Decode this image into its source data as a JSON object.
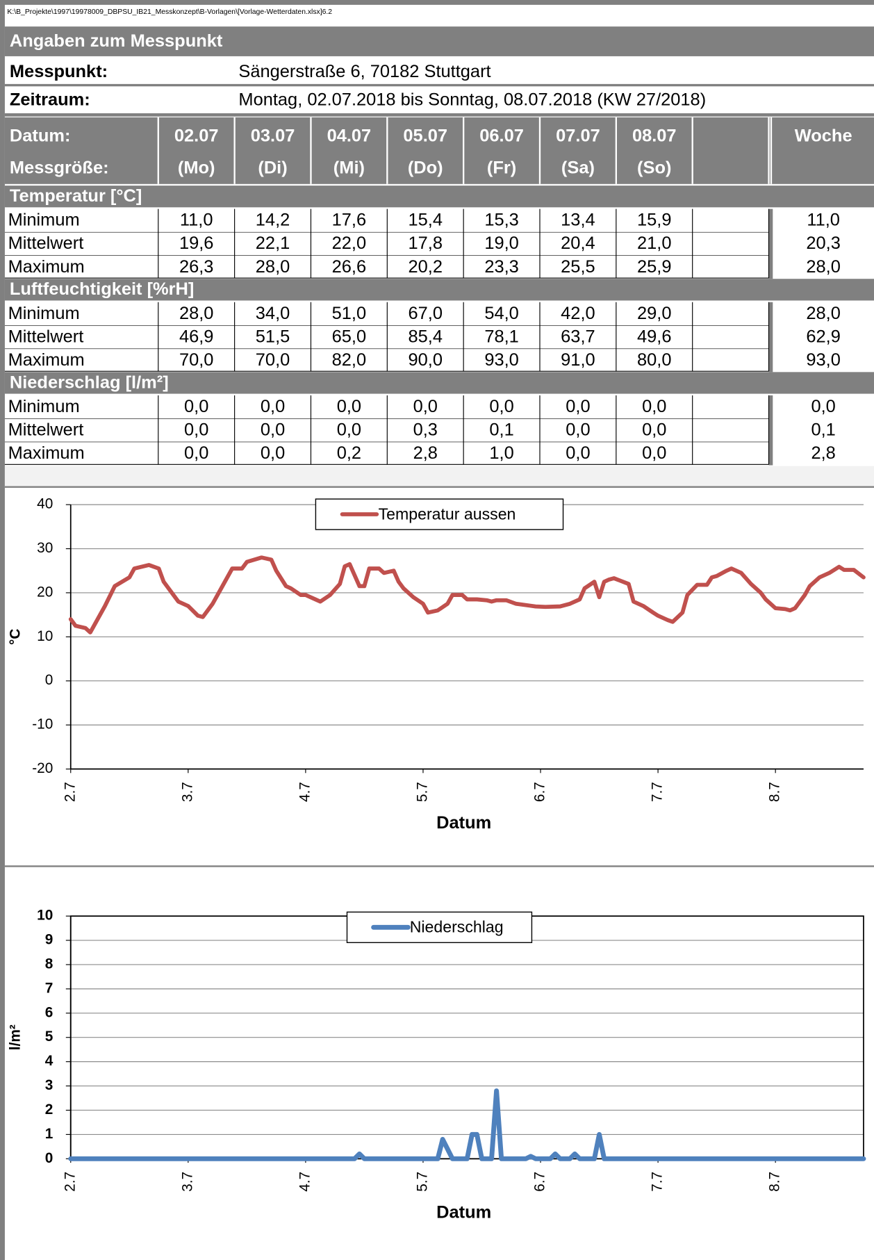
{
  "header": {
    "file_path": "K:\\B_Projekte\\1997\\19978009_DBPSU_IB21_Messkonzept\\B-Vorlagen\\[Vorlage-Wetterdaten.xlsx]6.2",
    "section_title": "Angaben zum Messpunkt",
    "messpunkt_label": "Messpunkt:",
    "messpunkt_value": "Sängerstraße 6, 70182 Stuttgart",
    "zeitraum_label": "Zeitraum:",
    "zeitraum_value": "Montag, 02.07.2018 bis Sonntag, 08.07.2018 (KW 27/2018)"
  },
  "table": {
    "label_top": "Datum:",
    "label_bottom": "Messgröße:",
    "days": [
      {
        "date": "02.07",
        "day": "(Mo)"
      },
      {
        "date": "03.07",
        "day": "(Di)"
      },
      {
        "date": "04.07",
        "day": "(Mi)"
      },
      {
        "date": "05.07",
        "day": "(Do)"
      },
      {
        "date": "06.07",
        "day": "(Fr)"
      },
      {
        "date": "07.07",
        "day": "(Sa)"
      },
      {
        "date": "08.07",
        "day": "(So)"
      }
    ],
    "week": "Woche",
    "groups": [
      {
        "title": "Temperatur [°C]",
        "rows": [
          {
            "label": "Minimum",
            "values": [
              "11,0",
              "14,2",
              "17,6",
              "15,4",
              "15,3",
              "13,4",
              "15,9"
            ],
            "week": "11,0"
          },
          {
            "label": "Mittelwert",
            "values": [
              "19,6",
              "22,1",
              "22,0",
              "17,8",
              "19,0",
              "20,4",
              "21,0"
            ],
            "week": "20,3"
          },
          {
            "label": "Maximum",
            "values": [
              "26,3",
              "28,0",
              "26,6",
              "20,2",
              "23,3",
              "25,5",
              "25,9"
            ],
            "week": "28,0"
          }
        ]
      },
      {
        "title": "Luftfeuchtigkeit [%rH]",
        "rows": [
          {
            "label": "Minimum",
            "values": [
              "28,0",
              "34,0",
              "51,0",
              "67,0",
              "54,0",
              "42,0",
              "29,0"
            ],
            "week": "28,0"
          },
          {
            "label": "Mittelwert",
            "values": [
              "46,9",
              "51,5",
              "65,0",
              "85,4",
              "78,1",
              "63,7",
              "49,6"
            ],
            "week": "62,9"
          },
          {
            "label": "Maximum",
            "values": [
              "70,0",
              "70,0",
              "82,0",
              "90,0",
              "93,0",
              "91,0",
              "80,0"
            ],
            "week": "93,0"
          }
        ]
      },
      {
        "title": "Niederschlag [l/m²]",
        "rows": [
          {
            "label": "Minimum",
            "values": [
              "0,0",
              "0,0",
              "0,0",
              "0,0",
              "0,0",
              "0,0",
              "0,0"
            ],
            "week": "0,0"
          },
          {
            "label": "Mittelwert",
            "values": [
              "0,0",
              "0,0",
              "0,0",
              "0,3",
              "0,1",
              "0,0",
              "0,0"
            ],
            "week": "0,1"
          },
          {
            "label": "Maximum",
            "values": [
              "0,0",
              "0,0",
              "0,2",
              "2,8",
              "1,0",
              "0,0",
              "0,0"
            ],
            "week": "2,8"
          }
        ]
      }
    ]
  },
  "chart_data": [
    {
      "type": "line",
      "xlabel": "Datum",
      "ylabel": "°C",
      "x": [
        0,
        1,
        3,
        4,
        5,
        7,
        9,
        12,
        13,
        16,
        18,
        19,
        21,
        22,
        24,
        26,
        27,
        29,
        31,
        33,
        35,
        36,
        39,
        41,
        42,
        44,
        45,
        47,
        48,
        50,
        51,
        53,
        55,
        56,
        57,
        59,
        60,
        61,
        63,
        64,
        66,
        67,
        68,
        70,
        72,
        73,
        75,
        77,
        78,
        80,
        81,
        83,
        85,
        86,
        87,
        89,
        91,
        95,
        97,
        100,
        102,
        104,
        105,
        107,
        108,
        109,
        110,
        111,
        114,
        115,
        117,
        119,
        120,
        122,
        123,
        125,
        126,
        128,
        130,
        131,
        132,
        134,
        135,
        137,
        139,
        141,
        142,
        144,
        146,
        147,
        148,
        150,
        151,
        153,
        155,
        157,
        158,
        160,
        162
      ],
      "xlim": [
        0,
        162
      ],
      "xticks": [
        {
          "value": 0,
          "label": "2.7"
        },
        {
          "value": 24,
          "label": "3.7"
        },
        {
          "value": 48,
          "label": "4.7"
        },
        {
          "value": 72,
          "label": "5.7"
        },
        {
          "value": 96,
          "label": "6.7"
        },
        {
          "value": 120,
          "label": "7.7"
        },
        {
          "value": 144,
          "label": "8.7"
        }
      ],
      "ylim": [
        -20,
        40
      ],
      "yticks": [
        -20,
        -10,
        0,
        10,
        20,
        30,
        40
      ],
      "grid": true,
      "legend": "upper center",
      "series": [
        {
          "name": "Temperatur aussen",
          "color": "#c0504d",
          "values": [
            14,
            12.5,
            12,
            11,
            13,
            17,
            21.5,
            23.5,
            25.5,
            26.3,
            25.5,
            22.5,
            19.5,
            18,
            17,
            14.8,
            14.5,
            17.5,
            21.5,
            25.5,
            25.5,
            27,
            28,
            27.5,
            25,
            21.5,
            21,
            19.5,
            19.5,
            18.5,
            18,
            19.5,
            22,
            26,
            26.5,
            21.5,
            21.5,
            25.5,
            25.5,
            24.5,
            25,
            22.5,
            21,
            19,
            17.5,
            15.5,
            16,
            17.5,
            19.5,
            19.5,
            18.5,
            18.5,
            18.3,
            18,
            18.3,
            18.3,
            17.5,
            16.9,
            16.8,
            16.9,
            17.5,
            18.5,
            21,
            22.5,
            19,
            22.5,
            23,
            23.3,
            22,
            18,
            17,
            15.5,
            14.8,
            13.8,
            13.4,
            15.5,
            19.5,
            21.8,
            21.8,
            23.5,
            23.8,
            25,
            25.5,
            24.5,
            22,
            20,
            18.5,
            16.5,
            16.3,
            16,
            16.5,
            19.5,
            21.5,
            23.5,
            24.5,
            25.9,
            25.2,
            25.2,
            23.5
          ]
        }
      ]
    },
    {
      "type": "line",
      "xlabel": "Datum",
      "ylabel": "l/m²",
      "x": [
        0,
        58,
        59,
        60,
        75,
        76,
        77,
        78,
        81,
        82,
        83,
        84,
        86,
        87,
        88,
        93,
        94,
        95,
        98,
        99,
        100,
        102,
        103,
        104,
        107,
        108,
        109,
        162
      ],
      "xlim": [
        0,
        162
      ],
      "xticks": [
        {
          "value": 0,
          "label": "2.7"
        },
        {
          "value": 24,
          "label": "3.7"
        },
        {
          "value": 48,
          "label": "4.7"
        },
        {
          "value": 72,
          "label": "5.7"
        },
        {
          "value": 96,
          "label": "6.7"
        },
        {
          "value": 120,
          "label": "7.7"
        },
        {
          "value": 144,
          "label": "8.7"
        }
      ],
      "ylim": [
        0,
        10
      ],
      "yticks": [
        0,
        1,
        2,
        3,
        4,
        5,
        6,
        7,
        8,
        9,
        10
      ],
      "grid": true,
      "legend": "upper center",
      "series": [
        {
          "name": "Niederschlag",
          "color": "#4f81bd",
          "values": [
            0,
            0,
            0.2,
            0,
            0,
            0.8,
            0.4,
            0,
            0,
            1.0,
            1.0,
            0,
            0,
            2.8,
            0,
            0,
            0.1,
            0,
            0,
            0.2,
            0,
            0,
            0.2,
            0,
            0,
            1.0,
            0,
            0
          ]
        }
      ]
    }
  ]
}
